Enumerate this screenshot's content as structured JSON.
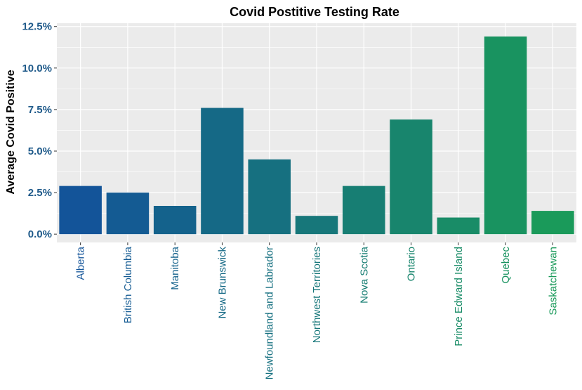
{
  "chart_data": {
    "type": "bar",
    "title": "Covid Postitive Testing Rate",
    "xlabel": "",
    "ylabel": "Average Covid Positive",
    "categories": [
      "Alberta",
      "British Columbia",
      "Manitoba",
      "New Brunswick",
      "Newfoundland and Labrador",
      "Northwest Territories",
      "Nova Scotia",
      "Ontario",
      "Prince Edward Island",
      "Quebec",
      "Saskatchewan"
    ],
    "values": [
      2.9,
      2.5,
      1.7,
      7.6,
      4.5,
      1.1,
      2.9,
      6.9,
      1.0,
      11.9,
      1.4
    ],
    "ylim": [
      -0.5,
      12.7
    ],
    "yticks": [
      "0.0%",
      "2.5%",
      "5.0%",
      "7.5%",
      "10.0%",
      "12.5%"
    ],
    "ytick_values": [
      0,
      2.5,
      5,
      7.5,
      10,
      12.5
    ],
    "grid": true,
    "colors": {
      "panel": "#ebebeb",
      "grid": "#ffffff",
      "axis_text": "#1f5a8a",
      "gradient_start": "#135499",
      "gradient_end": "#1a9a5a"
    }
  }
}
